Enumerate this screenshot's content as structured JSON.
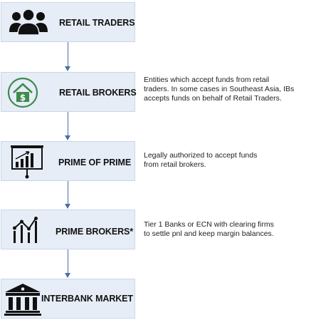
{
  "diagram": {
    "steps": [
      {
        "label": "RETAIL TRADERS",
        "icon": "people-group-icon",
        "description": []
      },
      {
        "label": "RETAIL BROKERS",
        "icon": "house-dollar-icon",
        "description": [
          "Entities which accept funds from retail",
          "traders. In some cases in Southeast Asia, IBs",
          "accepts funds on behalf of Retail Traders."
        ]
      },
      {
        "label": "PRIME OF PRIME",
        "icon": "presentation-chart-icon",
        "description": [
          "Legally authorized to accept funds",
          "from retail brokers."
        ]
      },
      {
        "label": "PRIME BROKERS*",
        "icon": "line-chart-icon",
        "description": [
          "Tier 1 Banks or ECN with clearing firms",
          "to settle pnl and keep margin balances."
        ]
      },
      {
        "label": "INTERBANK MARKET",
        "icon": "bank-building-icon",
        "description": []
      }
    ],
    "colors": {
      "box_fill": "#e6edf6",
      "box_border": "#c9d6e8",
      "arrow": "#4a6fa5",
      "house_icon": "#3f8a4f"
    }
  }
}
